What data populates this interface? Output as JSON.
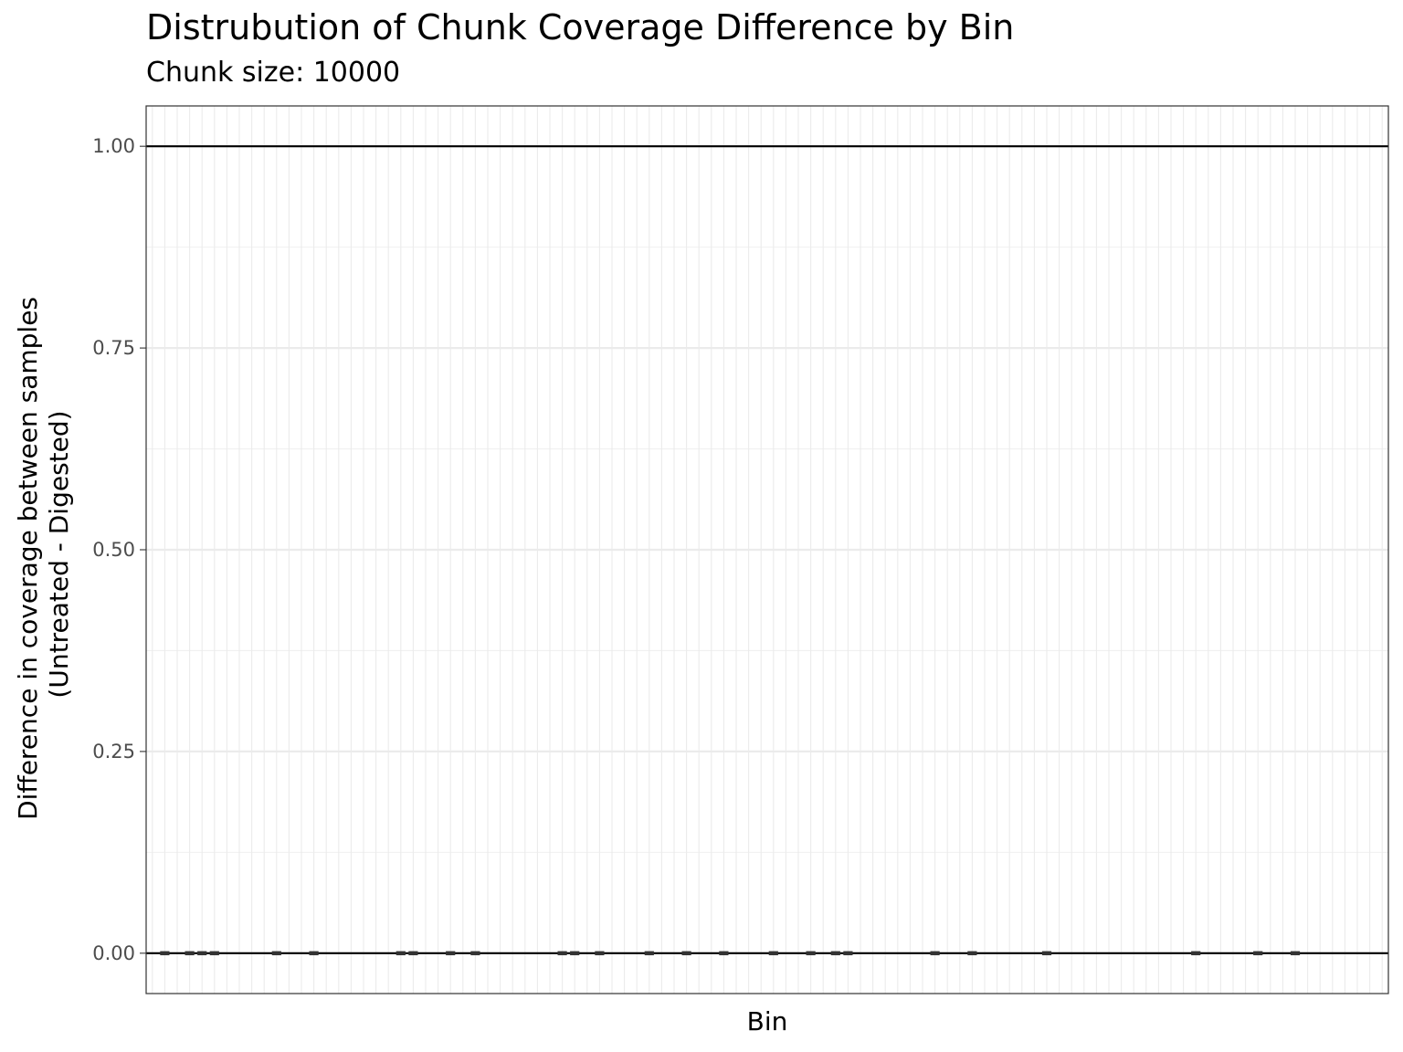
{
  "chart_data": {
    "type": "box",
    "title": "Distrubution of Chunk Coverage Difference by Bin",
    "subtitle": "Chunk size: 10000",
    "xlabel": "Bin",
    "ylabel_lines": [
      "Difference in coverage between samples",
      "(Untreated - Digested)"
    ],
    "ylim": [
      -0.05,
      1.05
    ],
    "yticks": [
      0,
      0.25,
      0.5,
      0.75,
      1
    ],
    "ytick_labels": [
      "0.00",
      "0.25",
      "0.50",
      "0.75",
      "1.00"
    ],
    "xlim": [
      0.5,
      100.5
    ],
    "n_bins": 100,
    "reference_lines": [
      0,
      1
    ],
    "grid": true,
    "boxes": [
      {
        "bin": 2,
        "value": 0
      },
      {
        "bin": 4,
        "value": 0
      },
      {
        "bin": 5,
        "value": 0
      },
      {
        "bin": 6,
        "value": 0
      },
      {
        "bin": 11,
        "value": 0
      },
      {
        "bin": 14,
        "value": 0
      },
      {
        "bin": 21,
        "value": 0
      },
      {
        "bin": 22,
        "value": 0
      },
      {
        "bin": 25,
        "value": 0
      },
      {
        "bin": 27,
        "value": 0
      },
      {
        "bin": 34,
        "value": 0
      },
      {
        "bin": 35,
        "value": 0
      },
      {
        "bin": 37,
        "value": 0
      },
      {
        "bin": 41,
        "value": 0
      },
      {
        "bin": 44,
        "value": 0
      },
      {
        "bin": 47,
        "value": 0
      },
      {
        "bin": 51,
        "value": 0
      },
      {
        "bin": 54,
        "value": 0
      },
      {
        "bin": 56,
        "value": 0
      },
      {
        "bin": 57,
        "value": 0
      },
      {
        "bin": 64,
        "value": 0
      },
      {
        "bin": 67,
        "value": 0
      },
      {
        "bin": 73,
        "value": 0
      },
      {
        "bin": 85,
        "value": 0
      },
      {
        "bin": 90,
        "value": 0
      },
      {
        "bin": 93,
        "value": 0
      }
    ]
  }
}
